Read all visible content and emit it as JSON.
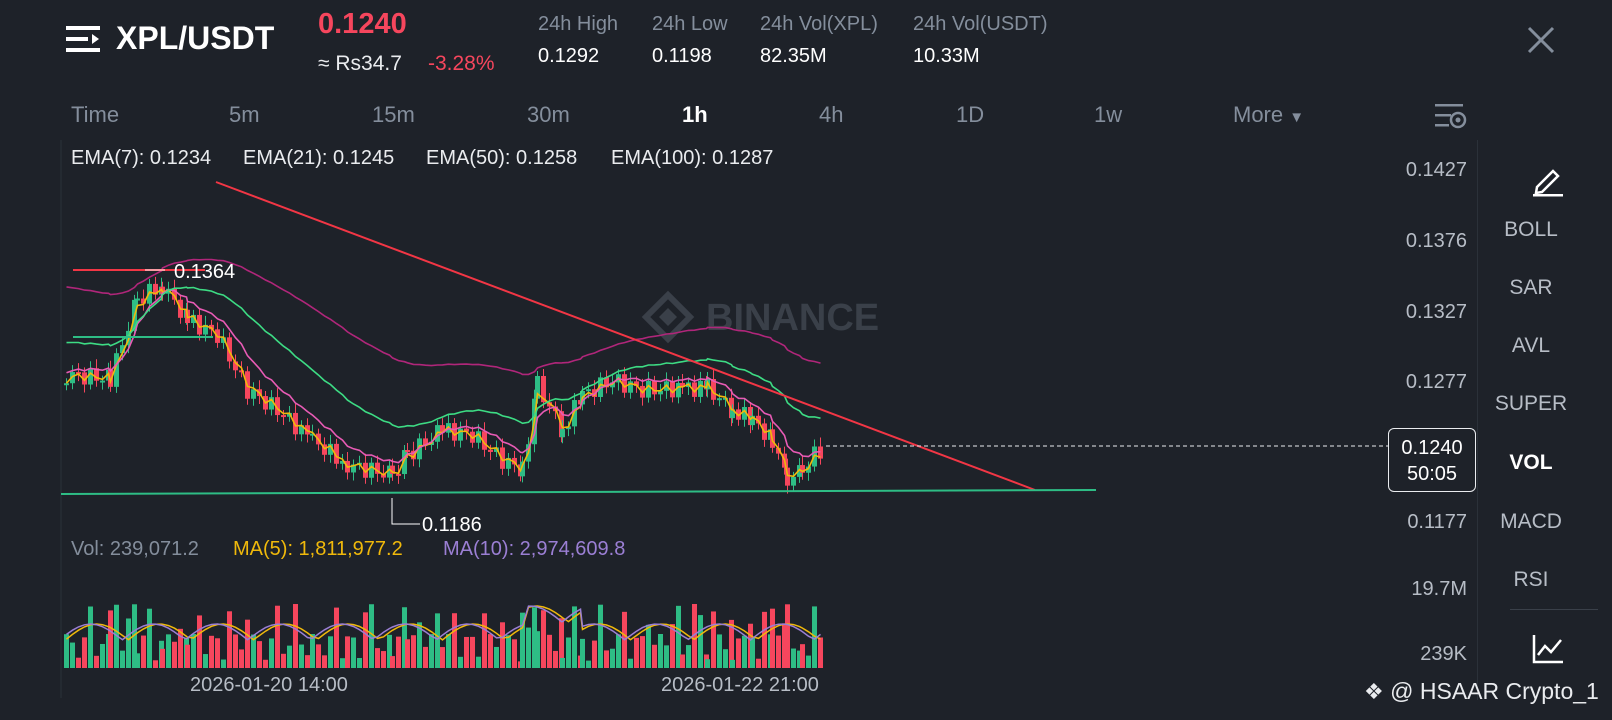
{
  "header": {
    "pair": "XPL/USDT",
    "price": "0.1240",
    "fiat_price": "≈ Rs34.7",
    "change": "-3.28%",
    "stats": [
      {
        "label": "24h High",
        "value": "0.1292"
      },
      {
        "label": "24h Low",
        "value": "0.1198"
      },
      {
        "label": "24h Vol(XPL)",
        "value": "82.35M"
      },
      {
        "label": "24h Vol(USDT)",
        "value": "10.33M"
      }
    ]
  },
  "timeframes": [
    "Time",
    "5m",
    "15m",
    "30m",
    "1h",
    "4h",
    "1D",
    "1w"
  ],
  "active_timeframe": "1h",
  "more_label": "More",
  "ema": [
    {
      "label": "EMA(7): 0.1234",
      "color": "#f0b90b"
    },
    {
      "label": "EMA(21): 0.1245",
      "color": "#e85bb5"
    },
    {
      "label": "EMA(50): 0.1258",
      "color": "#3ddc84"
    },
    {
      "label": "EMA(100): 0.1287",
      "color": "#b0267a"
    }
  ],
  "price_axis": [
    "0.1427",
    "0.1376",
    "0.1327",
    "0.1277",
    "0.1177"
  ],
  "current": {
    "price": "0.1240",
    "countdown": "50:05"
  },
  "annotations": {
    "high": "0.1364",
    "low": "0.1186"
  },
  "volume": {
    "vol": "Vol: 239,071.2",
    "ma5": "MA(5): 1,811,977.2",
    "ma10": "MA(10): 2,974,609.8",
    "axis_top": "19.7M",
    "axis_bottom": "239K"
  },
  "time_axis": [
    "2026-01-20 14:00",
    "2026-01-22 21:00"
  ],
  "indicators": [
    "BOLL",
    "SAR",
    "AVL",
    "SUPER",
    "VOL",
    "MACD",
    "RSI"
  ],
  "active_indicator": "VOL",
  "watermark_logo": "BINANCE",
  "watermark_user": "@ HSAAR Crypto_1",
  "colors": {
    "up": "#2ebd85",
    "down": "#f6465d",
    "trend": "#f23645",
    "support": "#2ebd85"
  }
}
